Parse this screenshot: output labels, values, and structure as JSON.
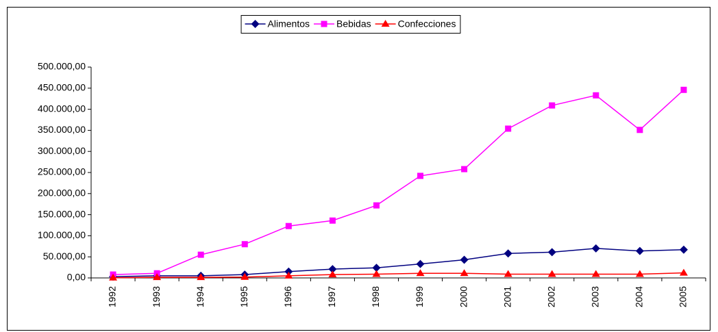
{
  "chart_data": {
    "type": "line",
    "categories": [
      "1992",
      "1993",
      "1994",
      "1995",
      "1996",
      "1997",
      "1998",
      "1999",
      "2000",
      "2001",
      "2002",
      "2003",
      "2004",
      "2005"
    ],
    "series": [
      {
        "name": "Alimentos",
        "color": "#000080",
        "marker": "diamond",
        "values": [
          3000,
          5000,
          5000,
          8000,
          15000,
          21000,
          24000,
          33000,
          43000,
          58000,
          61000,
          70000,
          64000,
          67000
        ]
      },
      {
        "name": "Bebidas",
        "color": "#ff00ff",
        "marker": "square",
        "values": [
          8000,
          11000,
          55000,
          80000,
          123000,
          136000,
          172000,
          242000,
          258000,
          354000,
          409000,
          433000,
          351000,
          446000
        ]
      },
      {
        "name": "Confecciones",
        "color": "#ff0000",
        "marker": "triangle",
        "values": [
          500,
          1500,
          1500,
          2000,
          5000,
          8000,
          9000,
          11000,
          11000,
          9000,
          9000,
          9000,
          9000,
          12000
        ]
      }
    ],
    "ylim": [
      0,
      500000
    ],
    "yticks": [
      {
        "value": 0,
        "label": "0,00"
      },
      {
        "value": 50000,
        "label": "50.000,00"
      },
      {
        "value": 100000,
        "label": "100.000,00"
      },
      {
        "value": 150000,
        "label": "150.000,00"
      },
      {
        "value": 200000,
        "label": "200.000,00"
      },
      {
        "value": 250000,
        "label": "250.000,00"
      },
      {
        "value": 300000,
        "label": "300.000,00"
      },
      {
        "value": 350000,
        "label": "350.000,00"
      },
      {
        "value": 400000,
        "label": "400.000,00"
      },
      {
        "value": 450000,
        "label": "450.000,00"
      },
      {
        "value": 500000,
        "label": "500.000,00"
      }
    ],
    "grid": false,
    "legend": "top"
  }
}
